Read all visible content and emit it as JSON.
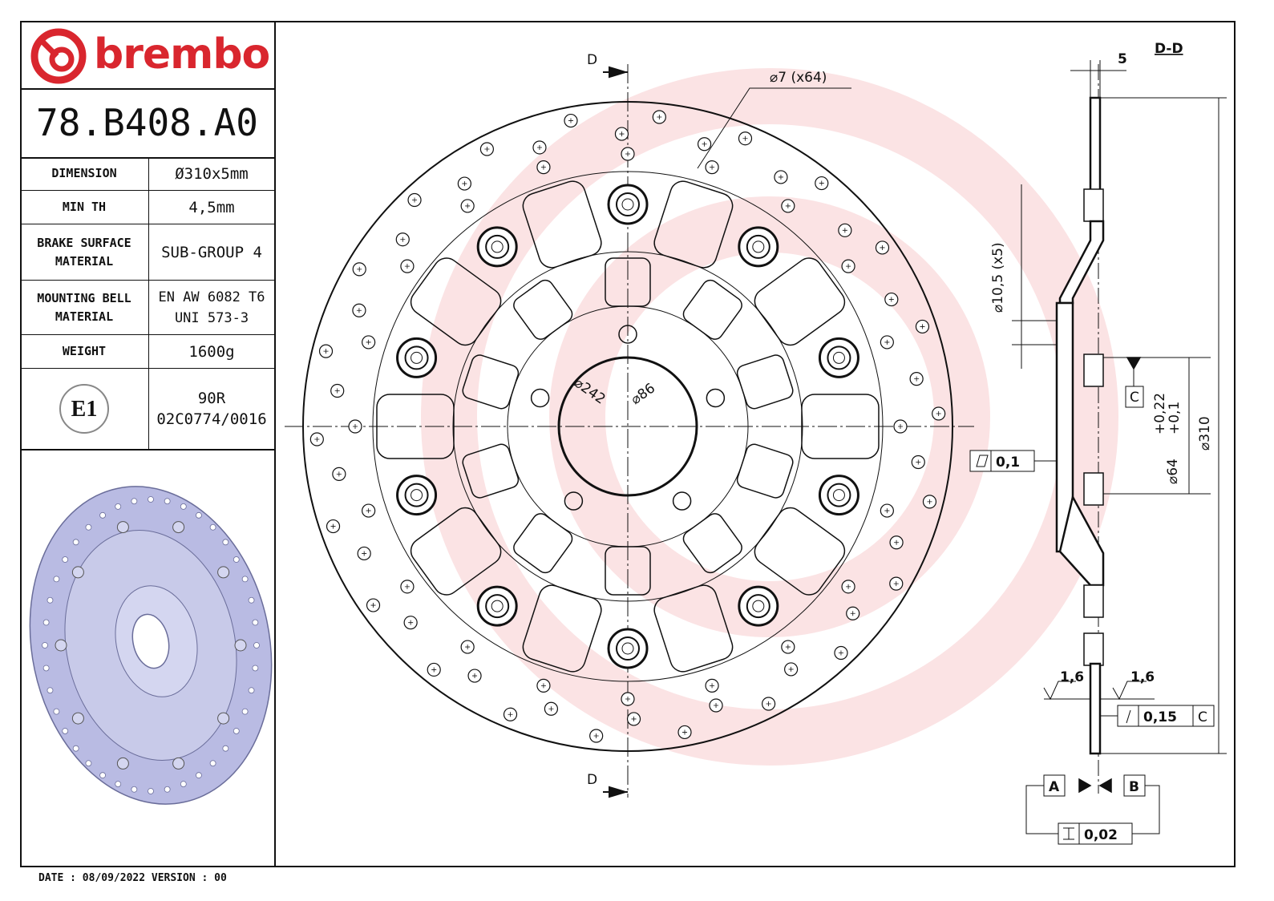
{
  "title_block": {
    "brand": "brembo",
    "part_number": "78.B408.A0",
    "rows": [
      {
        "key": "DIMENSION",
        "value": "Ø310x5mm"
      },
      {
        "key": "MIN TH",
        "value": "4,5mm"
      },
      {
        "key": "BRAKE SURFACE\nMATERIAL",
        "value": "SUB-GROUP 4"
      },
      {
        "key": "MOUNTING BELL\nMATERIAL",
        "value": "EN AW 6082 T6\nUNI 573-3"
      },
      {
        "key": "WEIGHT",
        "value": "1600g"
      }
    ],
    "approval_mark": "E1",
    "approval_code": "90R\n02C0774/0016"
  },
  "footer": {
    "text": "DATE : 08/09/2022 VERSION : 00"
  },
  "front_view": {
    "section_marker_top": "D",
    "section_marker_bottom": "D",
    "drill_hole_callout": "⌀7 (x64)",
    "dim_242": "⌀242",
    "dim_86": "⌀86"
  },
  "section_view": {
    "title": "D-D",
    "thickness": "5",
    "bolt_hole_dim": "⌀10,5 (x5)",
    "datum_c": "C",
    "bore_dim": "⌀64",
    "bore_tol_upper": "+0,22",
    "bore_tol_lower": "+0,1",
    "outer_dim": "⌀310",
    "flatness_value": "0,1",
    "roughness_left": "1,6",
    "roughness_right": "1,6",
    "runout_value": "0,15",
    "runout_datum": "C",
    "datum_a": "A",
    "datum_b": "B",
    "parallelism_value": "0,02"
  },
  "colors": {
    "brand_red": "#d9262e",
    "watermark": "#fbe3e4",
    "iso_fill": "#b9bbe3"
  }
}
